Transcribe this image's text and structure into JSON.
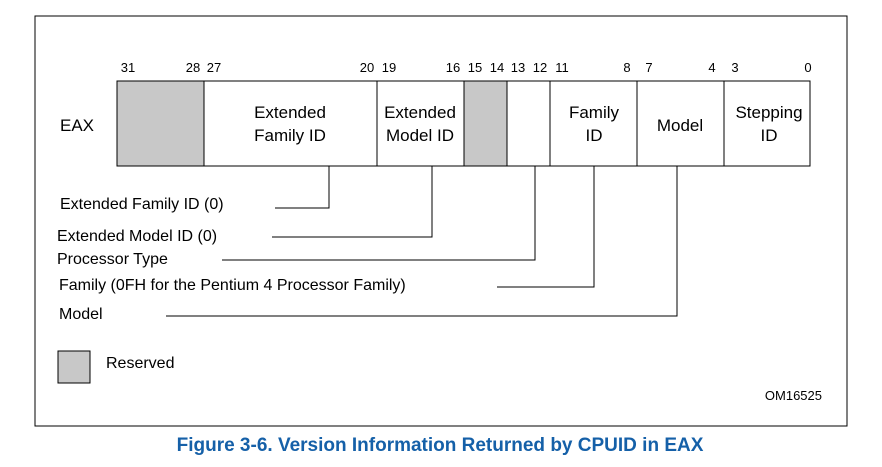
{
  "register_label": "EAX",
  "bit_numbers": [
    "31",
    "28",
    "27",
    "20",
    "19",
    "16",
    "15",
    "14",
    "13",
    "12",
    "11",
    "8",
    "7",
    "4",
    "3",
    "0"
  ],
  "fields": [
    {
      "key": "reserved-high",
      "lines": [],
      "reserved": true
    },
    {
      "key": "extended-family-id",
      "lines": [
        "Extended",
        "Family ID"
      ],
      "reserved": false
    },
    {
      "key": "extended-model-id",
      "lines": [
        "Extended",
        "Model ID"
      ],
      "reserved": false
    },
    {
      "key": "reserved-mid",
      "lines": [],
      "reserved": true
    },
    {
      "key": "processor-type",
      "lines": [],
      "reserved": false
    },
    {
      "key": "family-id",
      "lines": [
        "Family",
        "ID"
      ],
      "reserved": false
    },
    {
      "key": "model",
      "lines": [
        "Model"
      ],
      "reserved": false
    },
    {
      "key": "stepping-id",
      "lines": [
        "Stepping",
        "ID"
      ],
      "reserved": false
    }
  ],
  "callouts": [
    "Extended Family ID (0)",
    "Extended Model ID (0)",
    "Processor Type",
    "Family (0FH for the Pentium 4 Processor Family)",
    "Model"
  ],
  "legend": {
    "reserved_label": "Reserved"
  },
  "figure_id": "OM16525",
  "caption": "Figure 3-6.  Version Information Returned by CPUID in EAX",
  "colors": {
    "reserved_fill": "#c8c8c8",
    "caption_color": "#1560a8",
    "border": "#000000"
  }
}
